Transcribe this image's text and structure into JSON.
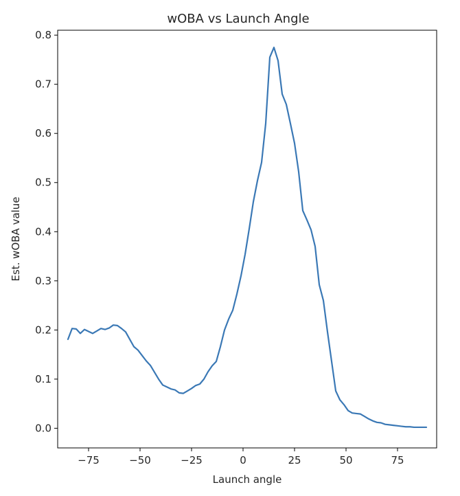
{
  "chart_data": {
    "type": "line",
    "title": "wOBA vs Launch Angle",
    "xlabel": "Launch angle",
    "ylabel": "Est. wOBA value",
    "xlim": [
      -90,
      94
    ],
    "ylim": [
      -0.04,
      0.81
    ],
    "x_ticks": [
      -75,
      -50,
      -25,
      0,
      25,
      50,
      75
    ],
    "x_tick_labels": [
      "−75",
      "−50",
      "−25",
      "0",
      "25",
      "50",
      "75"
    ],
    "y_ticks": [
      0.0,
      0.1,
      0.2,
      0.3,
      0.4,
      0.5,
      0.6,
      0.7,
      0.8
    ],
    "y_tick_labels": [
      "0.0",
      "0.1",
      "0.2",
      "0.3",
      "0.4",
      "0.5",
      "0.6",
      "0.7",
      "0.8"
    ],
    "grid": false,
    "line_color": "#3a78b5",
    "series": [
      {
        "x": [
          -85,
          -83,
          -81,
          -79,
          -77,
          -75,
          -73,
          -71,
          -69,
          -67,
          -65,
          -63,
          -61,
          -59,
          -57,
          -55,
          -53,
          -51,
          -49,
          -47,
          -45,
          -43,
          -41,
          -39,
          -37,
          -35,
          -33,
          -31,
          -29,
          -27,
          -25,
          -23,
          -21,
          -19,
          -17,
          -15,
          -13,
          -11,
          -9,
          -7,
          -5,
          -3,
          -1,
          1,
          3,
          5,
          7,
          9,
          11,
          13,
          15,
          17,
          19,
          21,
          23,
          25,
          27,
          29,
          31,
          33,
          35,
          37,
          39,
          41,
          43,
          45,
          47,
          49,
          51,
          53,
          55,
          57,
          59,
          61,
          63,
          65,
          67,
          69,
          71,
          73,
          75,
          77,
          79,
          81,
          83,
          85,
          87,
          89
        ],
        "y": [
          0.181,
          0.203,
          0.202,
          0.193,
          0.201,
          0.197,
          0.193,
          0.198,
          0.203,
          0.201,
          0.204,
          0.21,
          0.209,
          0.203,
          0.196,
          0.181,
          0.166,
          0.159,
          0.148,
          0.137,
          0.128,
          0.114,
          0.1,
          0.088,
          0.084,
          0.08,
          0.078,
          0.072,
          0.071,
          0.076,
          0.081,
          0.087,
          0.09,
          0.1,
          0.115,
          0.127,
          0.136,
          0.166,
          0.2,
          0.222,
          0.24,
          0.273,
          0.31,
          0.354,
          0.406,
          0.461,
          0.504,
          0.541,
          0.62,
          0.755,
          0.775,
          0.748,
          0.68,
          0.659,
          0.62,
          0.58,
          0.522,
          0.443,
          0.424,
          0.404,
          0.37,
          0.292,
          0.26,
          0.196,
          0.136,
          0.076,
          0.058,
          0.048,
          0.036,
          0.031,
          0.03,
          0.029,
          0.024,
          0.019,
          0.015,
          0.012,
          0.011,
          0.008,
          0.007,
          0.006,
          0.005,
          0.004,
          0.003,
          0.003,
          0.002,
          0.002,
          0.002,
          0.002
        ]
      }
    ]
  }
}
